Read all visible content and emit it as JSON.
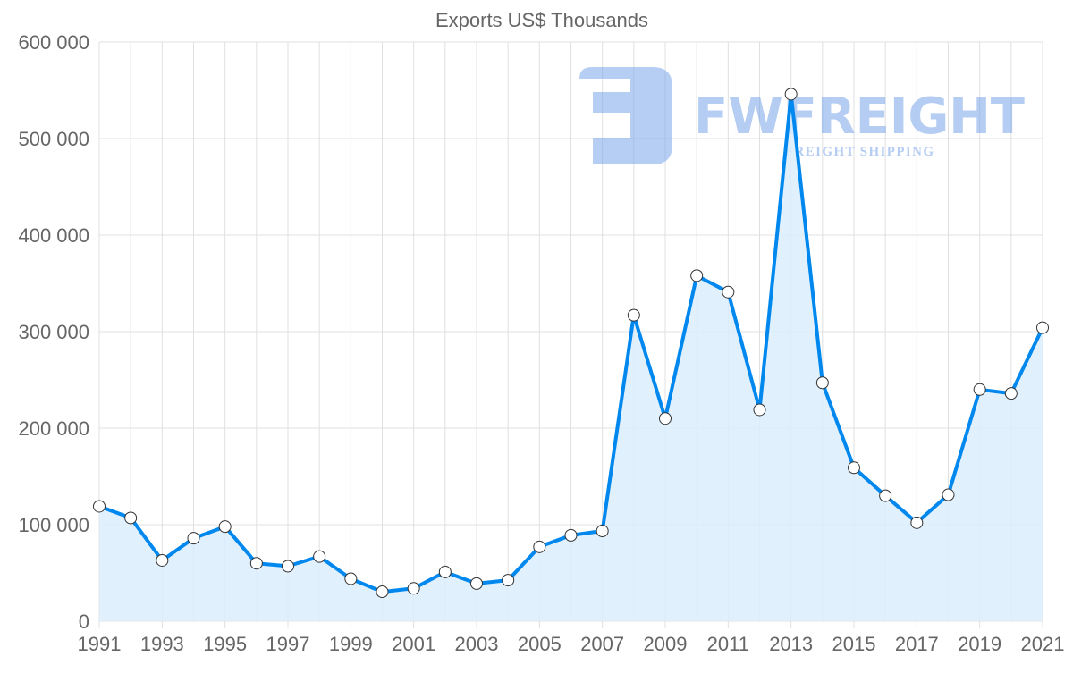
{
  "chart_data": {
    "type": "area",
    "title": "Exports US$ Thousands",
    "xlabel": "",
    "ylabel": "",
    "x": [
      1991,
      1992,
      1993,
      1994,
      1995,
      1996,
      1997,
      1998,
      1999,
      2000,
      2001,
      2002,
      2003,
      2004,
      2005,
      2006,
      2007,
      2008,
      2009,
      2010,
      2011,
      2012,
      2013,
      2014,
      2015,
      2016,
      2017,
      2018,
      2019,
      2020,
      2021
    ],
    "series": [
      {
        "name": "Exports US$ Thousands",
        "values": [
          119000,
          107000,
          63000,
          86000,
          98000,
          60000,
          57000,
          67000,
          44000,
          30500,
          34000,
          51000,
          39000,
          42500,
          77000,
          89000,
          93500,
          317000,
          210000,
          358000,
          341000,
          219000,
          546000,
          247000,
          159000,
          130000,
          102000,
          131000,
          240000,
          236000,
          304000
        ]
      }
    ],
    "ylim": [
      0,
      600000
    ],
    "yticks": [
      "0",
      "100 000",
      "200 000",
      "300 000",
      "400 000",
      "500 000",
      "600 000"
    ],
    "xticks": [
      "1991",
      "1993",
      "1995",
      "1997",
      "1999",
      "2001",
      "2003",
      "2005",
      "2007",
      "2009",
      "2011",
      "2013",
      "2015",
      "2017",
      "2019",
      "2021"
    ],
    "grid": true,
    "legend": "none",
    "colors": {
      "line": "#0088ee",
      "fill": "#dcedfd",
      "grid": "#e0e0e0",
      "watermark": "#7aa5ea"
    }
  },
  "watermark": {
    "brand": "FWFREIGHT",
    "tagline": "FREIGHT SHIPPING"
  }
}
